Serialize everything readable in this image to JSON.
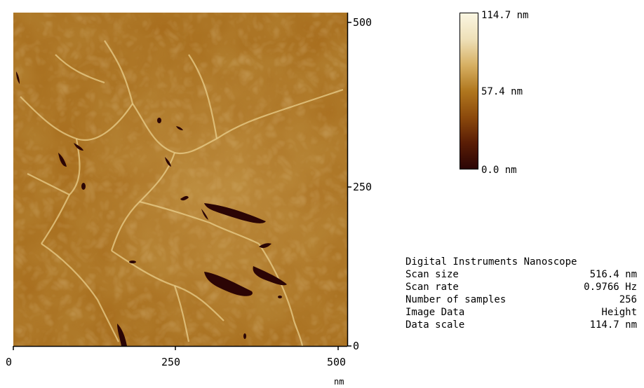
{
  "image": {
    "kind": "AFM height map",
    "colors": [
      "#2b0505",
      "#5a1d05",
      "#8c4a0c",
      "#b0771e",
      "#d7b063",
      "#eee0b8",
      "#fbf6e2"
    ]
  },
  "x_axis": {
    "ticks": [
      "0",
      "250",
      "500"
    ],
    "unit": "nm"
  },
  "y_axis": {
    "ticks": [
      "0",
      "250",
      "500"
    ]
  },
  "colorbar": {
    "max_label": "114.7 nm",
    "mid_label": "57.4 nm",
    "min_label": "0.0 nm"
  },
  "info": {
    "title": "Digital Instruments Nanoscope",
    "rows": [
      {
        "label": "Scan size",
        "value": "516.4 nm"
      },
      {
        "label": "Scan rate",
        "value": "0.9766 Hz"
      },
      {
        "label": "Number of samples",
        "value": "256"
      },
      {
        "label": "Image Data",
        "value": "Height"
      },
      {
        "label": "Data scale",
        "value": "114.7 nm"
      }
    ]
  }
}
